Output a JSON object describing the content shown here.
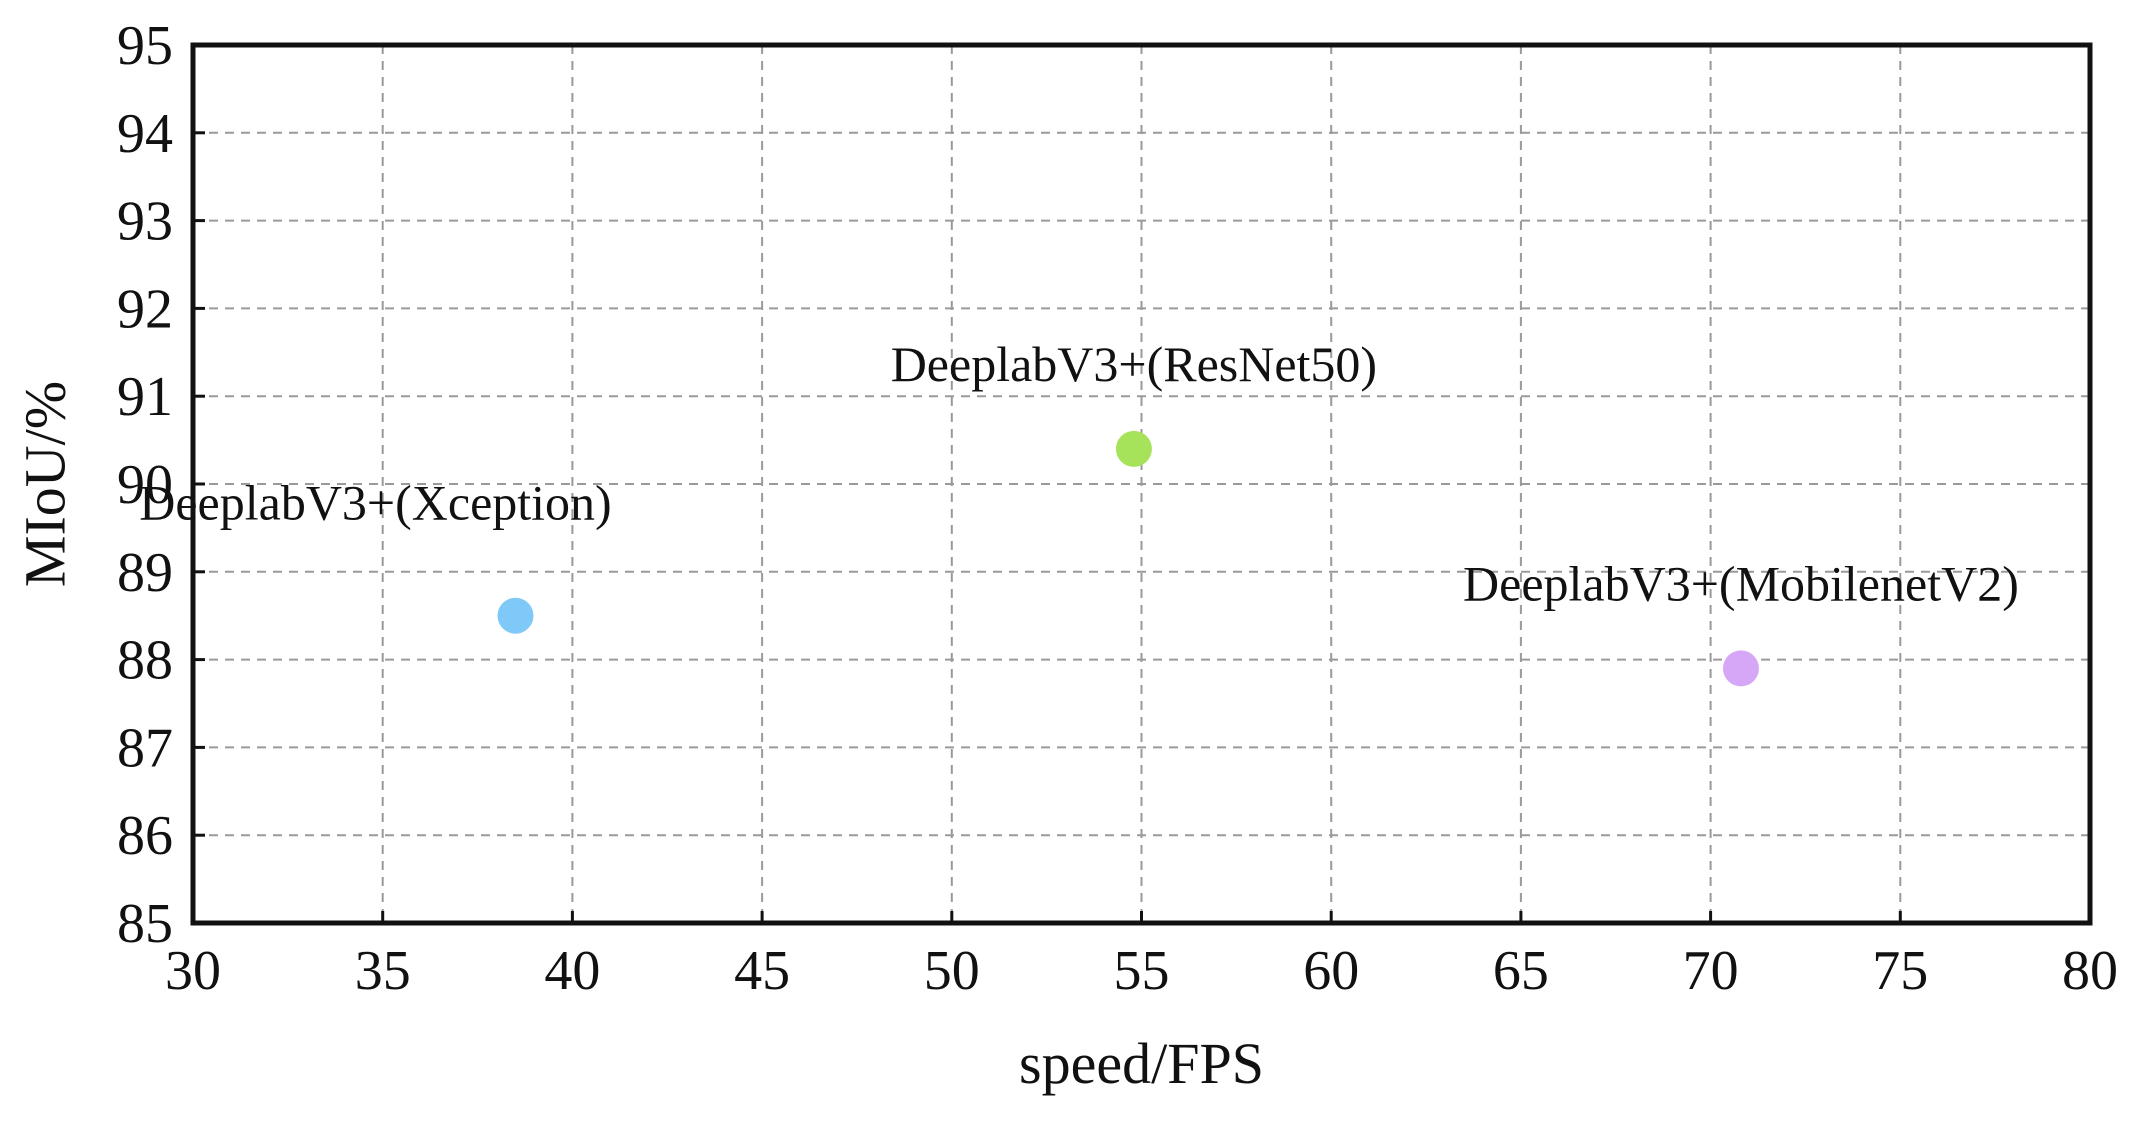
{
  "chart_data": {
    "type": "scatter",
    "title": "",
    "xlabel": "speed/FPS",
    "ylabel": "MIoU/%",
    "xlim": [
      30,
      80
    ],
    "ylim": [
      85,
      95
    ],
    "xticks": [
      30,
      35,
      40,
      45,
      50,
      55,
      60,
      65,
      70,
      75,
      80
    ],
    "yticks": [
      85,
      86,
      87,
      88,
      89,
      90,
      91,
      92,
      93,
      94,
      95
    ],
    "grid": true,
    "points": [
      {
        "label": "DeeplabV3+(Xception)",
        "x": 38.5,
        "y": 88.5,
        "color": "#7ec9f7",
        "label_position": "above-left"
      },
      {
        "label": "DeeplabV3+(ResNet50)",
        "x": 54.8,
        "y": 90.4,
        "color": "#a6e25a",
        "label_position": "above"
      },
      {
        "label": "DeeplabV3+(MobilenetV2)",
        "x": 70.8,
        "y": 87.9,
        "color": "#d7a7f7",
        "label_position": "above"
      }
    ]
  }
}
